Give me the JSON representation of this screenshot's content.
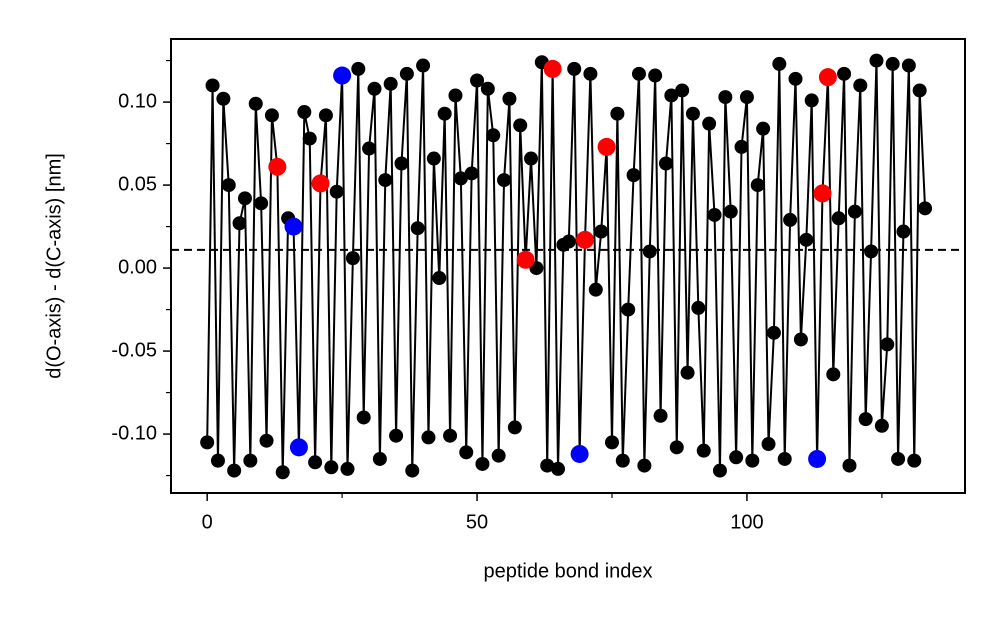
{
  "chart_data": {
    "type": "line",
    "xlabel": "peptide bond index",
    "ylabel": "d(O-axis) - d(C-axis) [nm]",
    "xlim": [
      -6.7,
      140.4
    ],
    "ylim": [
      -0.1355,
      0.138
    ],
    "xticks": [
      0,
      50,
      100
    ],
    "yticks": [
      {
        "value": 0.1,
        "label": "0.10"
      },
      {
        "value": 0.05,
        "label": "0.05"
      },
      {
        "value": 0,
        "label": "0.00"
      },
      {
        "value": -0.05,
        "label": "-0.05"
      },
      {
        "value": -0.1,
        "label": "-0.10"
      }
    ],
    "xminorticks": [
      25,
      75,
      125
    ],
    "yminorticks": [
      0.125,
      0.075,
      0.025,
      -0.025,
      -0.075,
      -0.125
    ],
    "reference_line": {
      "y": 0.011,
      "style": "dashed",
      "color": "#000000"
    },
    "x": [
      0,
      1,
      2,
      3,
      4,
      5,
      6,
      7,
      8,
      9,
      10,
      11,
      12,
      13,
      14,
      15,
      16,
      17,
      18,
      19,
      20,
      21,
      22,
      23,
      24,
      25,
      26,
      27,
      28,
      29,
      30,
      31,
      32,
      33,
      34,
      35,
      36,
      37,
      38,
      39,
      40,
      41,
      42,
      43,
      44,
      45,
      46,
      47,
      48,
      49,
      50,
      51,
      52,
      53,
      54,
      55,
      56,
      57,
      58,
      59,
      60,
      61,
      62,
      63,
      64,
      65,
      66,
      67,
      68,
      69,
      70,
      71,
      72,
      73,
      74,
      75,
      76,
      77,
      78,
      79,
      80,
      81,
      82,
      83,
      84,
      85,
      86,
      87,
      88,
      89,
      90,
      91,
      92,
      93,
      94,
      95,
      96,
      97,
      98,
      99,
      100,
      101,
      102,
      103,
      104,
      105,
      106,
      107,
      108,
      109,
      110,
      111,
      112,
      113,
      114,
      115,
      116,
      117,
      118,
      119,
      120,
      121,
      122,
      123,
      124,
      125,
      126,
      127,
      128,
      129,
      130,
      131,
      132,
      133
    ],
    "series": [
      {
        "color": "#000000",
        "line": true,
        "values": [
          -0.105,
          0.11,
          -0.116,
          0.102,
          0.05,
          -0.122,
          0.027,
          0.042,
          -0.116,
          0.099,
          0.039,
          -0.104,
          0.092,
          0.061,
          -0.123,
          0.03,
          0.025,
          -0.108,
          0.094,
          0.078,
          -0.117,
          0.051,
          0.092,
          -0.12,
          0.046,
          0.116,
          -0.121,
          0.006,
          0.12,
          -0.09,
          0.072,
          0.108,
          -0.115,
          0.053,
          0.111,
          -0.101,
          0.063,
          0.117,
          -0.122,
          0.024,
          0.122,
          -0.102,
          0.066,
          -0.006,
          0.093,
          -0.101,
          0.104,
          0.054,
          -0.111,
          0.057,
          0.113,
          -0.118,
          0.108,
          0.08,
          -0.113,
          0.053,
          0.102,
          -0.096,
          0.086,
          0.005,
          0.066,
          0.0,
          0.124,
          -0.119,
          0.12,
          -0.121,
          0.014,
          0.016,
          0.12,
          -0.112,
          0.017,
          0.117,
          -0.013,
          0.022,
          0.073,
          -0.105,
          0.093,
          -0.116,
          -0.025,
          0.056,
          0.117,
          -0.119,
          0.01,
          0.116,
          -0.089,
          0.063,
          0.104,
          -0.108,
          0.107,
          -0.063,
          0.093,
          -0.024,
          -0.11,
          0.087,
          0.032,
          -0.122,
          0.103,
          0.034,
          -0.114,
          0.073,
          0.103,
          -0.116,
          0.05,
          0.084,
          -0.106,
          -0.039,
          0.123,
          -0.115,
          0.029,
          0.114,
          -0.043,
          0.017,
          0.101,
          -0.115,
          0.045,
          0.115,
          -0.064,
          0.03,
          0.117,
          -0.119,
          0.034,
          0.11,
          -0.091,
          0.01,
          0.125,
          -0.095,
          -0.046,
          0.123,
          -0.115,
          0.022,
          0.122,
          -0.116,
          0.107,
          0.036
        ]
      },
      {
        "color": "#ff0000",
        "line": false,
        "x": [
          13,
          21,
          59,
          64,
          70,
          74,
          114,
          115
        ],
        "values": [
          0.061,
          0.051,
          0.005,
          0.12,
          0.017,
          0.073,
          0.045,
          0.115
        ]
      },
      {
        "color": "#0000ff",
        "line": false,
        "x": [
          16,
          17,
          25,
          69,
          113
        ],
        "values": [
          0.025,
          -0.108,
          0.116,
          -0.112,
          -0.115
        ]
      }
    ]
  }
}
